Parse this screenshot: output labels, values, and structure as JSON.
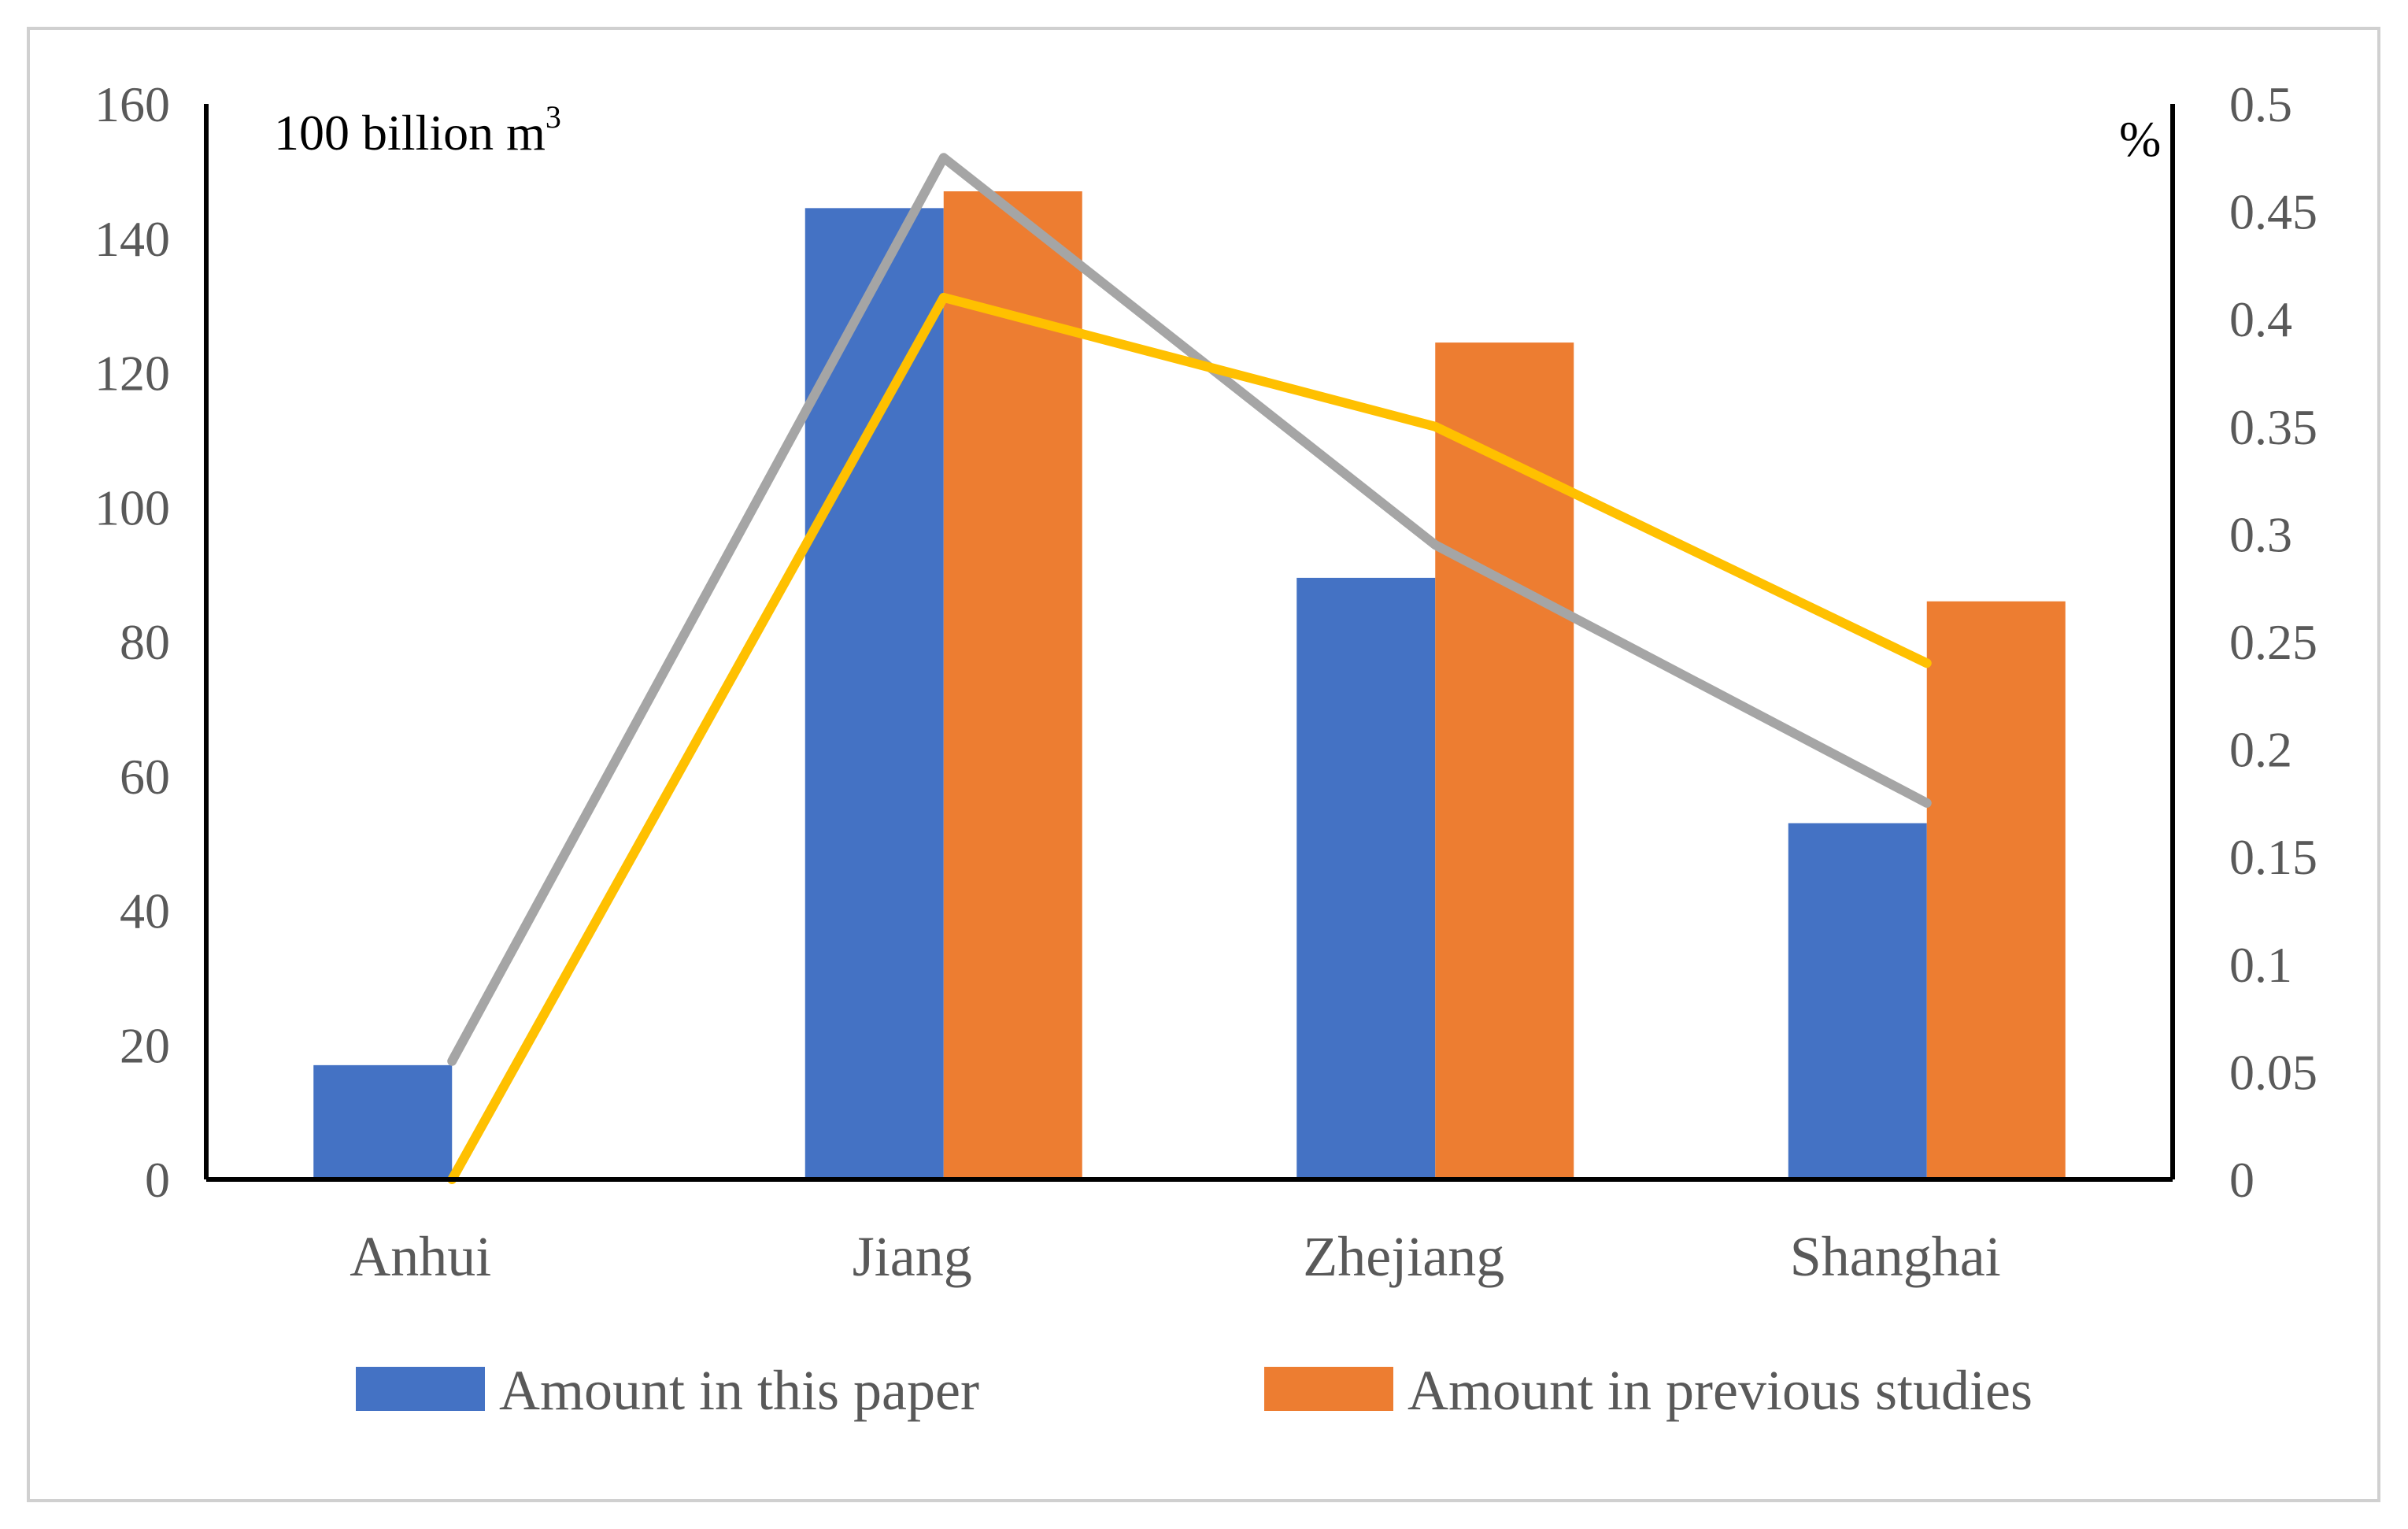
{
  "chart_data": {
    "type": "bar",
    "categories": [
      "Anhui",
      "Jiang",
      "Zhejiang",
      "Shanghai"
    ],
    "series": [
      {
        "name": "Amount in this paper",
        "type": "bar",
        "axis": "left",
        "color": "#4472C4",
        "values": [
          17,
          144.5,
          89.5,
          53
        ]
      },
      {
        "name": "Amount in previous studies",
        "type": "bar",
        "axis": "left",
        "color": "#ED7D31",
        "values": [
          null,
          147,
          124.5,
          86
        ]
      },
      {
        "type": "line",
        "axis": "right",
        "color": "#A5A5A5",
        "values": [
          0.055,
          0.475,
          0.295,
          0.175
        ]
      },
      {
        "type": "line",
        "axis": "right",
        "color": "#FFC000",
        "values": [
          0.0,
          0.41,
          0.35,
          0.24
        ]
      }
    ],
    "left_axis": {
      "unit_label_main": "100 billion m",
      "unit_label_sup": "3",
      "ylim": [
        0,
        160
      ],
      "ticks": [
        "0",
        "20",
        "40",
        "60",
        "80",
        "100",
        "120",
        "140",
        "160"
      ]
    },
    "right_axis": {
      "unit_label": "%",
      "ylim": [
        0,
        0.5
      ],
      "ticks": [
        "0",
        "0.05",
        "0.1",
        "0.15",
        "0.2",
        "0.25",
        "0.3",
        "0.35",
        "0.4",
        "0.45",
        "0.5"
      ]
    },
    "grid": false,
    "legend": {
      "position": "bottom"
    }
  }
}
